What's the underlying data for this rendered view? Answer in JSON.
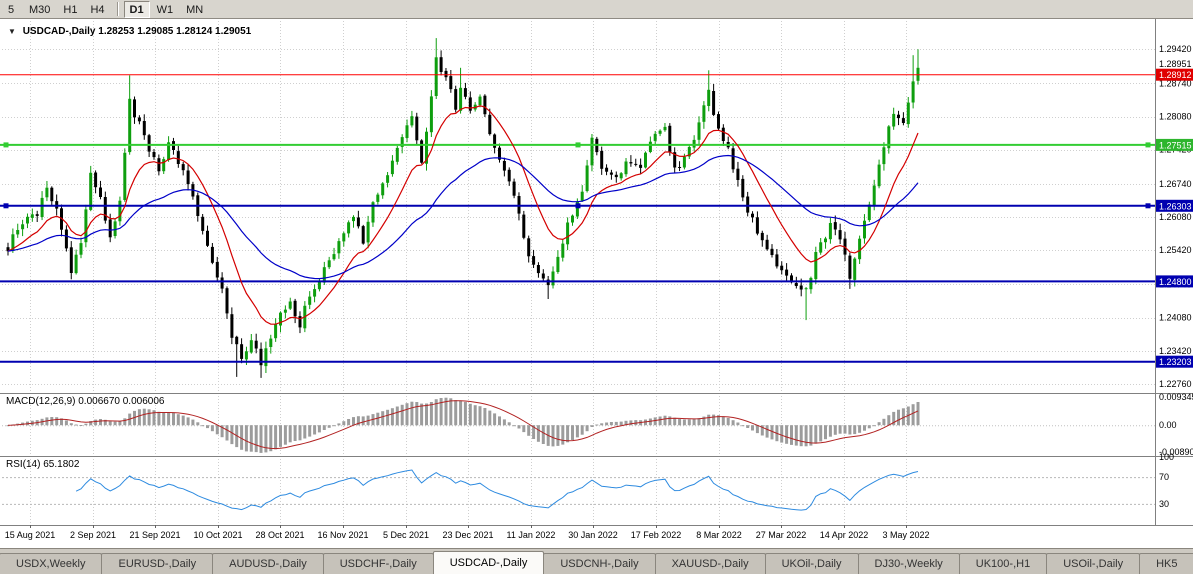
{
  "toolbar": {
    "buttons": [
      {
        "label": "5"
      },
      {
        "label": "M30"
      },
      {
        "label": "H1"
      },
      {
        "label": "H4"
      },
      {
        "separator": true
      },
      {
        "label": "D1",
        "active": true
      },
      {
        "label": "W1"
      },
      {
        "label": "MN"
      }
    ]
  },
  "chart": {
    "collapse_icon": "▼",
    "title": "USDCAD-,Daily",
    "ohlc_text": "1.28253 1.29085 1.28124 1.29051"
  },
  "chart_data": {
    "type": "candlestick",
    "symbol": "USDCAD-",
    "timeframe": "Daily",
    "open": "1.28253",
    "high": "1.29085",
    "low": "1.28124",
    "close": "1.29051",
    "x_labels": [
      "15 Aug 2021",
      "2 Sep 2021",
      "21 Sep 2021",
      "10 Oct 2021",
      "28 Oct 2021",
      "16 Nov 2021",
      "5 Dec 2021",
      "23 Dec 2021",
      "11 Jan 2022",
      "30 Jan 2022",
      "17 Feb 2022",
      "8 Mar 2022",
      "27 Mar 2022",
      "14 Apr 2022",
      "3 May 2022"
    ],
    "y_labels": [
      "1.29420",
      "1.28740",
      "1.28080",
      "1.27420",
      "1.26740",
      "1.26080",
      "1.25420",
      "1.24740",
      "1.24080",
      "1.23420",
      "1.22760"
    ],
    "y_range": {
      "max": 1.2998,
      "min": 1.2258
    },
    "bars": 188,
    "price_path": [
      [
        0,
        1.254
      ],
      [
        2,
        1.259
      ],
      [
        6,
        1.2615
      ],
      [
        8,
        1.2665
      ],
      [
        10,
        1.262
      ],
      [
        13,
        1.2505
      ],
      [
        15,
        1.256
      ],
      [
        17,
        1.269
      ],
      [
        19,
        1.265
      ],
      [
        21,
        1.2565
      ],
      [
        23,
        1.264
      ],
      [
        25,
        1.284
      ],
      [
        27,
        1.279
      ],
      [
        29,
        1.2745
      ],
      [
        31,
        1.2695
      ],
      [
        33,
        1.2755
      ],
      [
        35,
        1.272
      ],
      [
        38,
        1.264
      ],
      [
        41,
        1.2545
      ],
      [
        44,
        1.247
      ],
      [
        46,
        1.237
      ],
      [
        48,
        1.233
      ],
      [
        50,
        1.236
      ],
      [
        52,
        1.232
      ],
      [
        54,
        1.2375
      ],
      [
        56,
        1.242
      ],
      [
        58,
        1.244
      ],
      [
        60,
        1.2395
      ],
      [
        62,
        1.245
      ],
      [
        65,
        1.25
      ],
      [
        68,
        1.256
      ],
      [
        71,
        1.261
      ],
      [
        73,
        1.256
      ],
      [
        75,
        1.264
      ],
      [
        78,
        1.27
      ],
      [
        81,
        1.277
      ],
      [
        83,
        1.28
      ],
      [
        85,
        1.272
      ],
      [
        87,
        1.284
      ],
      [
        88,
        1.292
      ],
      [
        90,
        1.288
      ],
      [
        92,
        1.283
      ],
      [
        93,
        1.2865
      ],
      [
        95,
        1.282
      ],
      [
        97,
        1.284
      ],
      [
        99,
        1.277
      ],
      [
        102,
        1.27
      ],
      [
        105,
        1.262
      ],
      [
        107,
        1.253
      ],
      [
        109,
        1.25
      ],
      [
        111,
        1.248
      ],
      [
        113,
        1.253
      ],
      [
        115,
        1.259
      ],
      [
        118,
        1.266
      ],
      [
        120,
        1.276
      ],
      [
        122,
        1.27
      ],
      [
        125,
        1.268
      ],
      [
        127,
        1.272
      ],
      [
        130,
        1.27
      ],
      [
        132,
        1.276
      ],
      [
        135,
        1.279
      ],
      [
        137,
        1.27
      ],
      [
        140,
        1.274
      ],
      [
        142,
        1.28
      ],
      [
        144,
        1.286
      ],
      [
        146,
        1.278
      ],
      [
        148,
        1.274
      ],
      [
        151,
        1.265
      ],
      [
        153,
        1.26
      ],
      [
        156,
        1.254
      ],
      [
        159,
        1.25
      ],
      [
        161,
        1.248
      ],
      [
        164,
        1.246
      ],
      [
        166,
        1.253
      ],
      [
        169,
        1.259
      ],
      [
        171,
        1.256
      ],
      [
        173,
        1.249
      ],
      [
        175,
        1.257
      ],
      [
        177,
        1.264
      ],
      [
        180,
        1.274
      ],
      [
        182,
        1.282
      ],
      [
        184,
        1.279
      ],
      [
        185,
        1.284
      ],
      [
        187,
        1.2905
      ]
    ],
    "spikes": [
      {
        "bar": 13,
        "low": 1.2488
      },
      {
        "bar": 25,
        "high": 1.289
      },
      {
        "bar": 47,
        "low": 1.229
      },
      {
        "bar": 52,
        "low": 1.2288
      },
      {
        "bar": 88,
        "high": 1.2964
      },
      {
        "bar": 93,
        "high": 1.2905
      },
      {
        "bar": 111,
        "low": 1.2445
      },
      {
        "bar": 144,
        "high": 1.29
      },
      {
        "bar": 164,
        "low": 1.2403
      },
      {
        "bar": 173,
        "low": 1.2465
      },
      {
        "bar": 186,
        "high": 1.293
      },
      {
        "bar": 187,
        "high": 1.2942
      }
    ],
    "hlines": [
      {
        "price": 1.28912,
        "label": "1.28912",
        "line_color": "#FF0000",
        "badge_color": "#E00000",
        "width": 1
      },
      {
        "price": 1.27515,
        "label": "1.27515",
        "line_color": "#32CD32",
        "badge_color": "#2DB52D",
        "width": 2,
        "handles": true
      },
      {
        "price": 1.26303,
        "label": "1.26303",
        "line_color": "#0000B0",
        "badge_color": "#0000B0",
        "width": 2,
        "handles": true
      },
      {
        "price": 1.248,
        "label": "1.24800",
        "line_color": "#0000B0",
        "badge_color": "#0000B0",
        "width": 2
      },
      {
        "price": 1.23203,
        "label": "1.23203",
        "line_color": "#0000B0",
        "badge_color": "#0000B0",
        "width": 2
      }
    ],
    "extra_axis_label": {
      "text": "1.28951",
      "price": 1.2912
    },
    "moving_averages": [
      {
        "type": "ema",
        "period": 12,
        "color": "#D40000"
      },
      {
        "type": "ema",
        "period": 40,
        "color": "#0000C8"
      }
    ],
    "candle_colors": {
      "bull": "#0E9E0E",
      "bear": "#000000"
    },
    "grid_color": "#CFCFCF",
    "macd": {
      "name": "MACD(12,26,9)",
      "values": "0.006670 0.006006",
      "axis_labels": [
        "0.009345",
        "0.00",
        "-0.008902"
      ],
      "axis_max": 0.009345,
      "axis_min": -0.008902,
      "histogram_color": "#9C9C9C",
      "signal_color": "#B22222"
    },
    "rsi": {
      "name": "RSI(14)",
      "value": "65.1802",
      "axis_labels": [
        "100",
        "70",
        "30"
      ],
      "levels": [
        70,
        30
      ],
      "line_color": "#2E8BE0"
    }
  },
  "tabbar": {
    "tabs": [
      {
        "label": "USDX,Weekly"
      },
      {
        "label": "EURUSD-,Daily"
      },
      {
        "label": "AUDUSD-,Daily"
      },
      {
        "label": "USDCHF-,Daily"
      },
      {
        "label": "USDCAD-,Daily",
        "active": true
      },
      {
        "label": "USDCNH-,Daily"
      },
      {
        "label": "XAUUSD-,Daily"
      },
      {
        "label": "UKOil-,Daily"
      },
      {
        "label": "DJ30-,Weekly"
      },
      {
        "label": "UK100-,H1"
      },
      {
        "label": "USOil-,Daily"
      },
      {
        "label": "HK5"
      }
    ]
  }
}
